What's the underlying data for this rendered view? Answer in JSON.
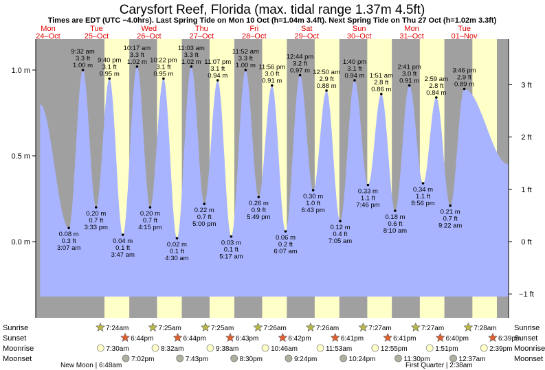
{
  "chart_data": {
    "type": "area",
    "title": "Carysfort Reef, Florida (max. tidal range 1.37m 4.5ft)",
    "subtitle": "Times are EDT (UTC −4.0hrs). Last Spring Tide on Mon 10 Oct (h=1.04m 3.4ft). Next Spring Tide on Thu 27 Oct (h=1.02m 3.3ft)",
    "x_range_hours": [
      0,
      216
    ],
    "ylim_m": [
      -0.36,
      1.2
    ],
    "left_axis": {
      "unit": "m",
      "ticks": [
        {
          "v": 1.0,
          "label": "1.0 m"
        },
        {
          "v": 0.5,
          "label": "0.5 m"
        },
        {
          "v": 0.0,
          "label": "0.0 m"
        }
      ]
    },
    "right_axis": {
      "unit": "ft",
      "ticks": [
        {
          "v": 3,
          "label": "3 ft"
        },
        {
          "v": 2,
          "label": "2 ft"
        },
        {
          "v": 1,
          "label": "1 ft"
        },
        {
          "v": 0,
          "label": "0 ft"
        },
        {
          "v": -1,
          "label": "−1 ft"
        }
      ]
    },
    "days": [
      {
        "label1": "Mon",
        "label2": "24–Oct",
        "hour": 0
      },
      {
        "label1": "Tue",
        "label2": "25–Oct",
        "hour": 24
      },
      {
        "label1": "Wed",
        "label2": "26–Oct",
        "hour": 48
      },
      {
        "label1": "Thu",
        "label2": "27–Oct",
        "hour": 72
      },
      {
        "label1": "Fri",
        "label2": "28–Oct",
        "hour": 96
      },
      {
        "label1": "Sat",
        "label2": "29–Oct",
        "hour": 120
      },
      {
        "label1": "Sun",
        "label2": "30–Oct",
        "hour": 144
      },
      {
        "label1": "Mon",
        "label2": "31–Oct",
        "hour": 168
      },
      {
        "label1": "Tue",
        "label2": "01–Nov",
        "hour": 192
      }
    ],
    "daylight": [
      {
        "rise": 31.4,
        "set": 42.73
      },
      {
        "rise": 55.42,
        "set": 66.73
      },
      {
        "rise": 79.42,
        "set": 90.72
      },
      {
        "rise": 103.43,
        "set": 114.7
      },
      {
        "rise": 127.43,
        "set": 138.68
      },
      {
        "rise": 151.45,
        "set": 162.68
      },
      {
        "rise": 175.45,
        "set": 186.67
      },
      {
        "rise": 199.47,
        "set": 210.65
      }
    ],
    "tide_start": {
      "hour": 2.0,
      "height": 0.8
    },
    "tide_end": {
      "hour": 216,
      "height": 0.45
    },
    "tides": [
      {
        "hour": 15.12,
        "height": 0.08,
        "type": "low",
        "time": "3:07 am",
        "m": "0.08 m",
        "ft": "0.3 ft"
      },
      {
        "hour": 21.53,
        "height": 1.0,
        "type": "high",
        "time": "9:32 am",
        "m": "1.00 m",
        "ft": "3.3 ft"
      },
      {
        "hour": 27.55,
        "height": 0.2,
        "type": "low",
        "time": "3:33 pm",
        "m": "0.20 m",
        "ft": "0.7 ft"
      },
      {
        "hour": 33.67,
        "height": 0.95,
        "type": "high",
        "time": "9:40 pm",
        "m": "0.95 m",
        "ft": "3.1 ft"
      },
      {
        "hour": 39.78,
        "height": 0.04,
        "type": "low",
        "time": "3:47 am",
        "m": "0.04 m",
        "ft": "0.1 ft"
      },
      {
        "hour": 46.28,
        "height": 1.02,
        "type": "high",
        "time": "10:17 am",
        "m": "1.02 m",
        "ft": "3.3 ft"
      },
      {
        "hour": 52.25,
        "height": 0.2,
        "type": "low",
        "time": "4:15 pm",
        "m": "0.20 m",
        "ft": "0.7 ft"
      },
      {
        "hour": 58.37,
        "height": 0.95,
        "type": "high",
        "time": "10:22 pm",
        "m": "0.95 m",
        "ft": "3.1 ft"
      },
      {
        "hour": 64.5,
        "height": 0.02,
        "type": "low",
        "time": "4:30 am",
        "m": "0.02 m",
        "ft": "0.1 ft"
      },
      {
        "hour": 71.05,
        "height": 1.02,
        "type": "high",
        "time": "11:03 am",
        "m": "1.02 m",
        "ft": "3.3 ft"
      },
      {
        "hour": 77.0,
        "height": 0.22,
        "type": "low",
        "time": "5:00 pm",
        "m": "0.22 m",
        "ft": "0.7 ft"
      },
      {
        "hour": 83.12,
        "height": 0.94,
        "type": "high",
        "time": "11:07 pm",
        "m": "0.94 m",
        "ft": "3.1 ft"
      },
      {
        "hour": 89.28,
        "height": 0.03,
        "type": "low",
        "time": "5:17 am",
        "m": "0.03 m",
        "ft": "0.1 ft"
      },
      {
        "hour": 95.87,
        "height": 1.0,
        "type": "high",
        "time": "11:52 am",
        "m": "1.00 m",
        "ft": "3.3 ft"
      },
      {
        "hour": 101.82,
        "height": 0.26,
        "type": "low",
        "time": "5:49 pm",
        "m": "0.26 m",
        "ft": "0.9 ft"
      },
      {
        "hour": 107.93,
        "height": 0.91,
        "type": "high",
        "time": "11:56 pm",
        "m": "0.91 m",
        "ft": "3.0 ft"
      },
      {
        "hour": 114.12,
        "height": 0.06,
        "type": "low",
        "time": "6:07 am",
        "m": "0.06 m",
        "ft": "0.2 ft"
      },
      {
        "hour": 120.73,
        "height": 0.97,
        "type": "high",
        "time": "12:44 pm",
        "m": "0.97 m",
        "ft": "3.2 ft"
      },
      {
        "hour": 126.72,
        "height": 0.3,
        "type": "low",
        "time": "6:43 pm",
        "m": "0.30 m",
        "ft": "1.0 ft"
      },
      {
        "hour": 132.83,
        "height": 0.88,
        "type": "high",
        "time": "12:50 am",
        "m": "0.88 m",
        "ft": "2.9 ft"
      },
      {
        "hour": 139.08,
        "height": 0.12,
        "type": "low",
        "time": "7:05 am",
        "m": "0.12 m",
        "ft": "0.4 ft"
      },
      {
        "hour": 145.67,
        "height": 0.94,
        "type": "high",
        "time": "1:40 pm",
        "m": "0.94 m",
        "ft": "3.1 ft"
      },
      {
        "hour": 151.77,
        "height": 0.33,
        "type": "low",
        "time": "7:46 pm",
        "m": "0.33 m",
        "ft": "1.1 ft"
      },
      {
        "hour": 157.85,
        "height": 0.86,
        "type": "high",
        "time": "1:51 am",
        "m": "0.86 m",
        "ft": "2.8 ft"
      },
      {
        "hour": 164.17,
        "height": 0.18,
        "type": "low",
        "time": "8:10 am",
        "m": "0.18 m",
        "ft": "0.6 ft"
      },
      {
        "hour": 170.68,
        "height": 0.91,
        "type": "high",
        "time": "2:41 pm",
        "m": "0.91 m",
        "ft": "3.0 ft"
      },
      {
        "hour": 176.93,
        "height": 0.34,
        "type": "low",
        "time": "8:56 pm",
        "m": "0.34 m",
        "ft": "1.1 ft"
      },
      {
        "hour": 182.98,
        "height": 0.84,
        "type": "high",
        "time": "2:59 am",
        "m": "0.84 m",
        "ft": "2.8 ft"
      },
      {
        "hour": 189.37,
        "height": 0.21,
        "type": "low",
        "time": "9:22 am",
        "m": "0.21 m",
        "ft": "0.7 ft"
      },
      {
        "hour": 195.77,
        "height": 0.89,
        "type": "high",
        "time": "3:46 pm",
        "m": "0.89 m",
        "ft": "2.9 ft"
      }
    ],
    "rows": {
      "labels": [
        "Sunrise",
        "Sunset",
        "Moonrise",
        "Moonset"
      ],
      "sunrise": [
        {
          "hour": 31.4,
          "label": "7:24am"
        },
        {
          "hour": 55.42,
          "label": "7:25am"
        },
        {
          "hour": 79.42,
          "label": "7:25am"
        },
        {
          "hour": 103.43,
          "label": "7:26am"
        },
        {
          "hour": 127.43,
          "label": "7:26am"
        },
        {
          "hour": 151.45,
          "label": "7:27am"
        },
        {
          "hour": 175.45,
          "label": "7:27am"
        },
        {
          "hour": 199.47,
          "label": "7:28am"
        }
      ],
      "sunset": [
        {
          "hour": 42.73,
          "label": "6:44pm"
        },
        {
          "hour": 66.73,
          "label": "6:44pm"
        },
        {
          "hour": 90.72,
          "label": "6:43pm"
        },
        {
          "hour": 114.7,
          "label": "6:42pm"
        },
        {
          "hour": 138.68,
          "label": "6:41pm"
        },
        {
          "hour": 162.68,
          "label": "6:41pm"
        },
        {
          "hour": 186.67,
          "label": "6:40pm"
        },
        {
          "hour": 210.65,
          "label": "6:39pm"
        }
      ],
      "moonrise": [
        {
          "hour": 31.5,
          "label": "7:30am"
        },
        {
          "hour": 56.53,
          "label": "8:32am"
        },
        {
          "hour": 81.63,
          "label": "9:38am"
        },
        {
          "hour": 106.77,
          "label": "10:46am"
        },
        {
          "hour": 131.88,
          "label": "11:53am"
        },
        {
          "hour": 156.92,
          "label": "12:55pm"
        },
        {
          "hour": 181.85,
          "label": "1:51pm"
        },
        {
          "hour": 206.65,
          "label": "2:39pm"
        }
      ],
      "moonset": [
        {
          "hour": 43.03,
          "label": "7:02pm"
        },
        {
          "hour": 67.72,
          "label": "7:43pm"
        },
        {
          "hour": 92.5,
          "label": "8:30pm"
        },
        {
          "hour": 117.4,
          "label": "9:24pm"
        },
        {
          "hour": 142.4,
          "label": "10:24pm"
        },
        {
          "hour": 167.5,
          "label": "11:30pm"
        },
        {
          "hour": 192.62,
          "label": "12:37am"
        }
      ]
    },
    "moon_phases": {
      "new_moon": "New Moon | 6:48am",
      "first_quarter": "First Quarter | 2:38am"
    },
    "colors": {
      "night": "#a0a0a0",
      "day": "#ffffc8",
      "water": "#a8b4ff",
      "day_label": "#e00000",
      "sun_star": "#b8b84a",
      "sunset_star": "#e06030",
      "moonrise_fill": "#ffffc8",
      "moonset_fill": "#b0b0a0"
    }
  }
}
